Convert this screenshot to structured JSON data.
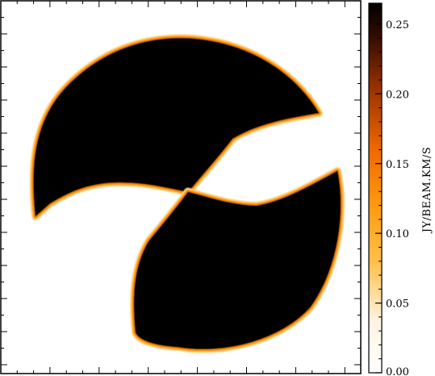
{
  "chart_data": {
    "type": "heatmap",
    "title": "",
    "xlabel": "",
    "ylabel": "",
    "colorbar": {
      "label": "JY/BEAM.KM/S",
      "range": [
        0.0,
        0.265
      ],
      "ticks": [
        0.0,
        0.05,
        0.1,
        0.15,
        0.2,
        0.25
      ],
      "tick_labels": [
        "0.00",
        "0.05",
        "0.10",
        "0.15",
        "0.20",
        "0.25"
      ],
      "colormap": "inverted heat (white → yellow → orange → black)"
    },
    "features": [
      {
        "name": "upper-left lobe",
        "peak_value": 0.265
      },
      {
        "name": "lower-right lobe",
        "peak_value": 0.265
      }
    ],
    "grid": false,
    "legend": "colorbar-right"
  },
  "colors": {
    "high": "#000000",
    "mid": "#ff7f00",
    "low": "#ffd27a",
    "zero": "#ffffff",
    "frame": "#000000"
  }
}
